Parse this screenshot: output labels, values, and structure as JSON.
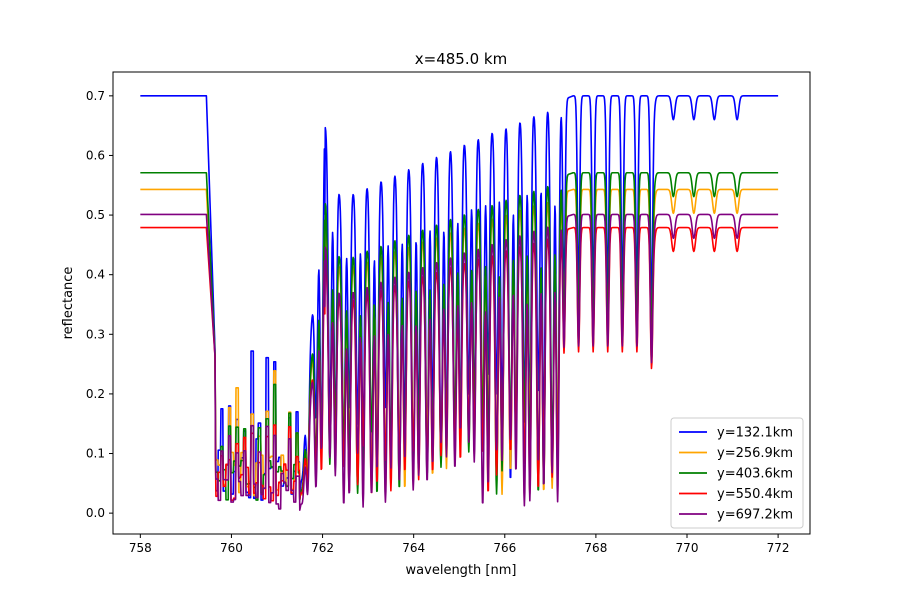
{
  "chart_data": {
    "type": "line",
    "title": "x=485.0 km",
    "xlabel": "wavelength [nm]",
    "ylabel": "reflectance",
    "xlim": [
      757.4,
      772.7
    ],
    "ylim": [
      -0.035,
      0.74
    ],
    "xticks": [
      758,
      760,
      762,
      764,
      766,
      768,
      770,
      772
    ],
    "xtick_labels": [
      "758",
      "760",
      "762",
      "764",
      "766",
      "768",
      "770",
      "772"
    ],
    "yticks": [
      0.0,
      0.1,
      0.2,
      0.3,
      0.4,
      0.5,
      0.6,
      0.7
    ],
    "ytick_labels": [
      "0.0",
      "0.1",
      "0.2",
      "0.3",
      "0.4",
      "0.5",
      "0.6",
      "0.7"
    ],
    "grid": false,
    "legend_position": "lower-right",
    "x_range": [
      758.0,
      772.0
    ],
    "series": [
      {
        "name": "y=132.1km",
        "color": "#0000ff",
        "baseline": 0.7,
        "band_floor": [
          0.02,
          0.32
        ],
        "peak_762": 0.66,
        "line_depth": 0.45,
        "line_floor": 0.05
      },
      {
        "name": "y=256.9km",
        "color": "#ffa500",
        "baseline": 0.543,
        "band_floor": [
          0.02,
          0.26
        ],
        "peak_762": 0.51,
        "line_depth": 0.4,
        "line_floor": 0.03
      },
      {
        "name": "y=403.6km",
        "color": "#008000",
        "baseline": 0.571,
        "band_floor": [
          0.02,
          0.24
        ],
        "peak_762": 0.53,
        "line_depth": 0.4,
        "line_floor": 0.03
      },
      {
        "name": "y=550.4km",
        "color": "#ff0000",
        "baseline": 0.479,
        "band_floor": [
          0.02,
          0.2
        ],
        "peak_762": 0.44,
        "line_depth": 0.36,
        "line_floor": 0.03
      },
      {
        "name": "y=697.2km",
        "color": "#800080",
        "baseline": 0.501,
        "band_floor": [
          0.0,
          0.18
        ],
        "peak_762": 0.455,
        "line_depth": 0.42,
        "line_floor": 0.01
      }
    ]
  }
}
